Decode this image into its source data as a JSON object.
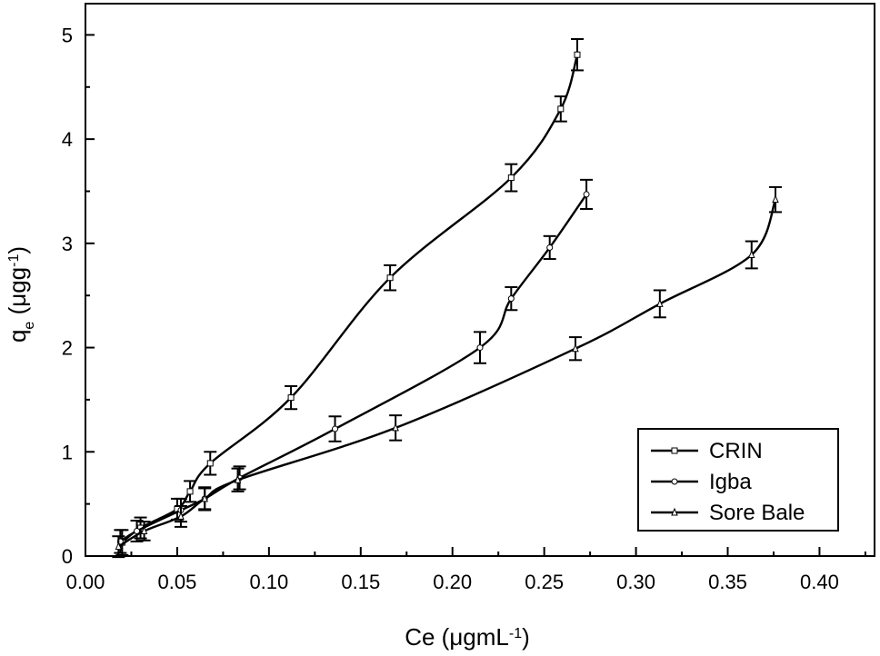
{
  "chart_data": {
    "type": "line",
    "xlabel": {
      "base": "Ce (μgmL",
      "sup": "-1",
      "tail": ")"
    },
    "ylabel": {
      "base": "q",
      "sub": "e",
      "mid": " (μgg",
      "sup": "-1",
      "tail": ")"
    },
    "xlim": [
      0.0,
      0.43
    ],
    "ylim": [
      0,
      5.3
    ],
    "xticks": [
      0.0,
      0.05,
      0.1,
      0.15,
      0.2,
      0.25,
      0.3,
      0.35,
      0.4
    ],
    "xtick_labels": [
      "0.00",
      "0.05",
      "0.10",
      "0.15",
      "0.20",
      "0.25",
      "0.30",
      "0.35",
      "0.40"
    ],
    "yticks": [
      0,
      1,
      2,
      3,
      4,
      5
    ],
    "ytick_labels": [
      "0",
      "1",
      "2",
      "3",
      "4",
      "5"
    ],
    "legend_position": "bottom-right",
    "grid": false,
    "series": [
      {
        "name": "CRIN",
        "marker": "square",
        "points": [
          {
            "x": 0.02,
            "y": 0.13,
            "err": 0.12
          },
          {
            "x": 0.03,
            "y": 0.27,
            "err": 0.1
          },
          {
            "x": 0.05,
            "y": 0.45,
            "err": 0.1
          },
          {
            "x": 0.057,
            "y": 0.62,
            "err": 0.1
          },
          {
            "x": 0.068,
            "y": 0.89,
            "err": 0.11
          },
          {
            "x": 0.112,
            "y": 1.52,
            "err": 0.11
          },
          {
            "x": 0.166,
            "y": 2.67,
            "err": 0.12
          },
          {
            "x": 0.232,
            "y": 3.63,
            "err": 0.13
          },
          {
            "x": 0.259,
            "y": 4.29,
            "err": 0.12
          },
          {
            "x": 0.268,
            "y": 4.81,
            "err": 0.15
          }
        ]
      },
      {
        "name": "Igba",
        "marker": "circle",
        "points": [
          {
            "x": 0.019,
            "y": 0.14,
            "err": 0.11
          },
          {
            "x": 0.028,
            "y": 0.24,
            "err": 0.1
          },
          {
            "x": 0.052,
            "y": 0.44,
            "err": 0.11
          },
          {
            "x": 0.065,
            "y": 0.55,
            "err": 0.11
          },
          {
            "x": 0.084,
            "y": 0.75,
            "err": 0.11
          },
          {
            "x": 0.136,
            "y": 1.22,
            "err": 0.12
          },
          {
            "x": 0.215,
            "y": 2.0,
            "err": 0.15
          },
          {
            "x": 0.232,
            "y": 2.47,
            "err": 0.11
          },
          {
            "x": 0.253,
            "y": 2.96,
            "err": 0.11
          },
          {
            "x": 0.273,
            "y": 3.47,
            "err": 0.14
          }
        ]
      },
      {
        "name": "Sore Bale",
        "marker": "triangle",
        "points": [
          {
            "x": 0.018,
            "y": 0.09,
            "err": 0.1
          },
          {
            "x": 0.032,
            "y": 0.24,
            "err": 0.09
          },
          {
            "x": 0.052,
            "y": 0.38,
            "err": 0.1
          },
          {
            "x": 0.065,
            "y": 0.55,
            "err": 0.1
          },
          {
            "x": 0.083,
            "y": 0.73,
            "err": 0.11
          },
          {
            "x": 0.169,
            "y": 1.23,
            "err": 0.12
          },
          {
            "x": 0.267,
            "y": 1.99,
            "err": 0.11
          },
          {
            "x": 0.313,
            "y": 2.42,
            "err": 0.13
          },
          {
            "x": 0.363,
            "y": 2.89,
            "err": 0.13
          },
          {
            "x": 0.376,
            "y": 3.42,
            "err": 0.12
          }
        ]
      }
    ]
  }
}
